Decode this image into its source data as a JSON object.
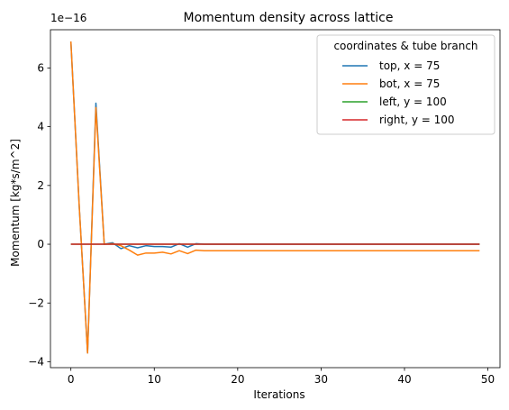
{
  "chart_data": {
    "type": "line",
    "title": "Momentum density across lattice",
    "xlabel": "Iterations",
    "ylabel": "Momentum [kg*s/m^2]",
    "y_offset_label": "1e−16",
    "xlim": [
      -2.45,
      51.45
    ],
    "ylim": [
      -4.2,
      7.3
    ],
    "xticks": [
      0,
      10,
      20,
      30,
      40,
      50
    ],
    "yticks": [
      -4,
      -2,
      0,
      2,
      4,
      6
    ],
    "ytick_labels": [
      "−4",
      "−2",
      "0",
      "2",
      "4",
      "6"
    ],
    "grid": false,
    "legend": {
      "title": "coordinates & tube branch",
      "placement": "upper right"
    },
    "x": [
      0,
      1,
      2,
      3,
      4,
      5,
      6,
      7,
      8,
      9,
      10,
      11,
      12,
      13,
      14,
      15,
      16,
      17,
      18,
      19,
      20,
      21,
      22,
      23,
      24,
      25,
      26,
      27,
      28,
      29,
      30,
      31,
      32,
      33,
      34,
      35,
      36,
      37,
      38,
      39,
      40,
      41,
      42,
      43,
      44,
      45,
      46,
      47,
      48,
      49
    ],
    "series": [
      {
        "name": "top, x = 75",
        "color": "#1f77b4",
        "values": [
          6.9,
          1.3,
          -3.7,
          4.8,
          0.0,
          0.05,
          -0.15,
          -0.05,
          -0.12,
          -0.05,
          -0.08,
          -0.08,
          -0.1,
          0.02,
          -0.1,
          0.02,
          0.0,
          0,
          0,
          0,
          0,
          0,
          0,
          0,
          0,
          0,
          0,
          0,
          0,
          0,
          0,
          0,
          0,
          0,
          0,
          0,
          0,
          0,
          0,
          0,
          0,
          0,
          0,
          0,
          0,
          0,
          0,
          0,
          0,
          0
        ]
      },
      {
        "name": "bot, x = 75",
        "color": "#ff7f0e",
        "values": [
          6.9,
          1.3,
          -3.7,
          4.65,
          0.0,
          0.02,
          -0.05,
          -0.2,
          -0.37,
          -0.3,
          -0.3,
          -0.27,
          -0.33,
          -0.22,
          -0.32,
          -0.2,
          -0.22,
          -0.22,
          -0.22,
          -0.22,
          -0.22,
          -0.22,
          -0.22,
          -0.22,
          -0.22,
          -0.22,
          -0.22,
          -0.22,
          -0.22,
          -0.22,
          -0.22,
          -0.22,
          -0.22,
          -0.22,
          -0.22,
          -0.22,
          -0.22,
          -0.22,
          -0.22,
          -0.22,
          -0.22,
          -0.22,
          -0.22,
          -0.22,
          -0.22,
          -0.22,
          -0.22,
          -0.22,
          -0.22,
          -0.22
        ]
      },
      {
        "name": "left, y = 100",
        "color": "#2ca02c",
        "values": [
          0,
          0,
          0,
          0,
          0,
          0,
          0,
          0,
          0,
          0,
          0,
          0,
          0,
          0,
          0,
          0,
          0,
          0,
          0,
          0,
          0,
          0,
          0,
          0,
          0,
          0,
          0,
          0,
          0,
          0,
          0,
          0,
          0,
          0,
          0,
          0,
          0,
          0,
          0,
          0,
          0,
          0,
          0,
          0,
          0,
          0,
          0,
          0,
          0,
          0
        ]
      },
      {
        "name": "right, y = 100",
        "color": "#d62728",
        "values": [
          0,
          0,
          0,
          0,
          0,
          0,
          0,
          0,
          0,
          0,
          0,
          0,
          0,
          0,
          0,
          0,
          0,
          0,
          0,
          0,
          0,
          0,
          0,
          0,
          0,
          0,
          0,
          0,
          0,
          0,
          0,
          0,
          0,
          0,
          0,
          0,
          0,
          0,
          0,
          0,
          0,
          0,
          0,
          0,
          0,
          0,
          0,
          0,
          0,
          0
        ]
      }
    ]
  }
}
